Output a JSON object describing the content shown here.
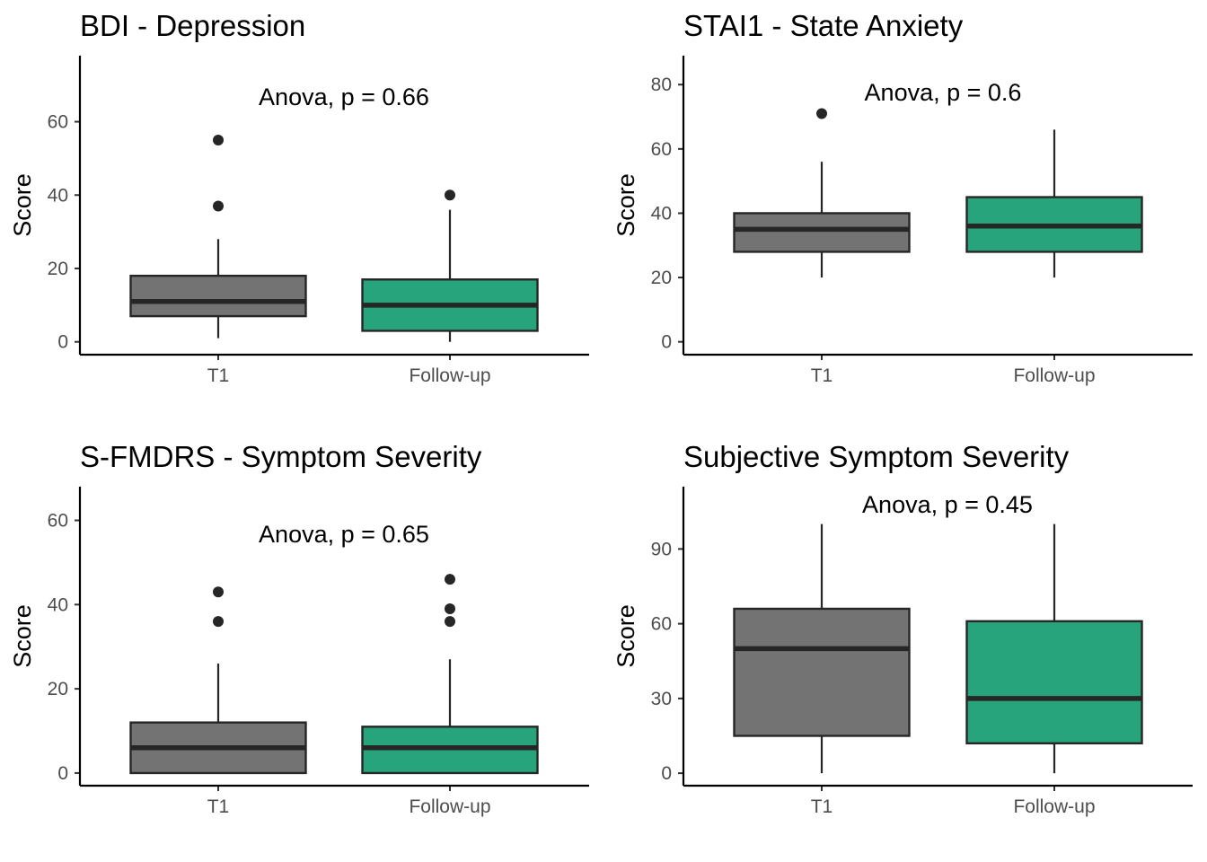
{
  "colors": {
    "T1": "#737373",
    "Follow-up": "#27a47c"
  },
  "chart_data": [
    {
      "type": "box",
      "title": "BDI - Depression",
      "ylabel": "Score",
      "annotation": "Anova, p = 0.66",
      "categories": [
        "T1",
        "Follow-up"
      ],
      "ylim": [
        -3.5,
        78
      ],
      "yticks": [
        0,
        20,
        40,
        60
      ],
      "boxes": [
        {
          "category": "T1",
          "whisker_low": 1,
          "q1": 7,
          "median": 11,
          "q3": 18,
          "whisker_high": 28,
          "outliers": [
            37,
            55
          ]
        },
        {
          "category": "Follow-up",
          "whisker_low": 0,
          "q1": 3,
          "median": 10,
          "q3": 17,
          "whisker_high": 36,
          "outliers": [
            40
          ]
        }
      ]
    },
    {
      "type": "box",
      "title": "STAI1 - State Anxiety",
      "ylabel": "Score",
      "annotation": "Anova, p = 0.6",
      "categories": [
        "T1",
        "Follow-up"
      ],
      "ylim": [
        -4,
        89
      ],
      "yticks": [
        0,
        20,
        40,
        60,
        80
      ],
      "boxes": [
        {
          "category": "T1",
          "whisker_low": 20,
          "q1": 28,
          "median": 35,
          "q3": 40,
          "whisker_high": 56,
          "outliers": [
            71
          ]
        },
        {
          "category": "Follow-up",
          "whisker_low": 20,
          "q1": 28,
          "median": 36,
          "q3": 45,
          "whisker_high": 66,
          "outliers": []
        }
      ]
    },
    {
      "type": "box",
      "title": "S-FMDRS - Symptom Severity",
      "ylabel": "Score",
      "annotation": "Anova, p = 0.65",
      "categories": [
        "T1",
        "Follow-up"
      ],
      "ylim": [
        -3,
        68
      ],
      "yticks": [
        0,
        20,
        40,
        60
      ],
      "boxes": [
        {
          "category": "T1",
          "whisker_low": 0,
          "q1": 0,
          "median": 6,
          "q3": 12,
          "whisker_high": 26,
          "outliers": [
            36,
            43
          ]
        },
        {
          "category": "Follow-up",
          "whisker_low": 0,
          "q1": 0,
          "median": 6,
          "q3": 11,
          "whisker_high": 27,
          "outliers": [
            36,
            39,
            46
          ]
        }
      ]
    },
    {
      "type": "box",
      "title": "Subjective Symptom Severity",
      "ylabel": "Score",
      "annotation": "Anova, p = 0.45",
      "categories": [
        "T1",
        "Follow-up"
      ],
      "ylim": [
        -5,
        115
      ],
      "yticks": [
        0,
        30,
        60,
        90
      ],
      "boxes": [
        {
          "category": "T1",
          "whisker_low": 0,
          "q1": 15,
          "median": 50,
          "q3": 66,
          "whisker_high": 100,
          "outliers": []
        },
        {
          "category": "Follow-up",
          "whisker_low": 0,
          "q1": 12,
          "median": 30,
          "q3": 61,
          "whisker_high": 100,
          "outliers": []
        }
      ]
    }
  ]
}
